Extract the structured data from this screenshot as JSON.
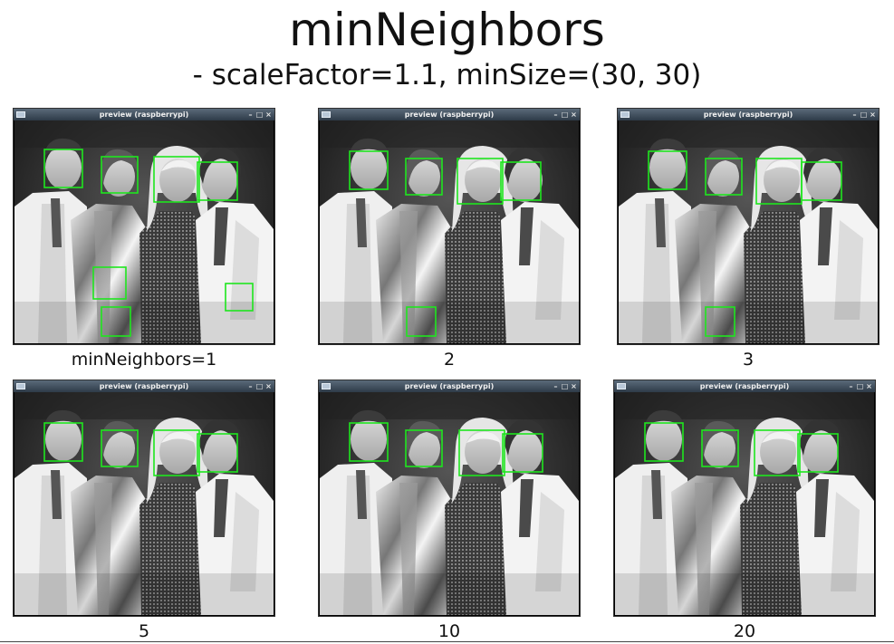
{
  "slide": {
    "title": "minNeighbors",
    "subtitle": "- scaleFactor=1.1, minSize=(30, 30)"
  },
  "window": {
    "title": "preview (raspberrypi)",
    "min_glyph": "–",
    "max_glyph": "□",
    "close_glyph": "×",
    "detection_color": "#1ee61e"
  },
  "panels": [
    {
      "caption": "minNeighbors=1",
      "detections": 7
    },
    {
      "caption": "2",
      "detections": 5
    },
    {
      "caption": "3",
      "detections": 5
    },
    {
      "caption": "5",
      "detections": 4
    },
    {
      "caption": "10",
      "detections": 4
    },
    {
      "caption": "20",
      "detections": 4
    }
  ]
}
